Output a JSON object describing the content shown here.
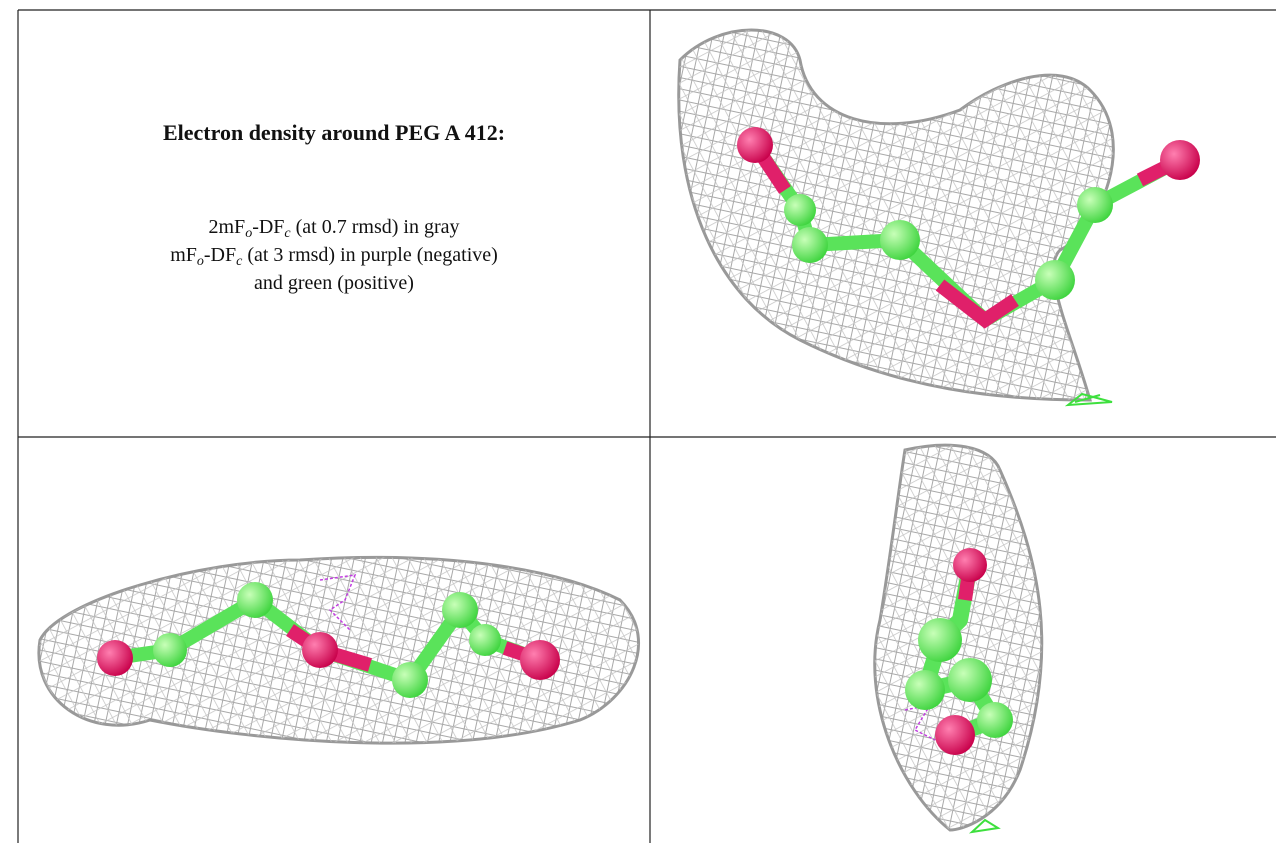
{
  "figure": {
    "title": "Electron density around PEG A 412:",
    "lines": [
      [
        "2mF",
        "o",
        "-DF",
        "c",
        " (at 0.7 rmsd) in gray"
      ],
      [
        "mF",
        "o",
        "-DF",
        "c",
        " (at 3 rmsd) in purple (negative)"
      ],
      [
        "and green (positive)"
      ]
    ]
  }
}
